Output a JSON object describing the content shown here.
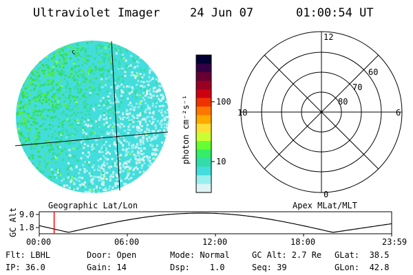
{
  "header": {
    "title": "Ultraviolet Imager",
    "date": "24 Jun 07",
    "time": "01:00:54 UT"
  },
  "colorbar": {
    "label": "photon cm⁻²s⁻¹",
    "ticks": [
      "100",
      "10"
    ],
    "colors": [
      "#000033",
      "#330044",
      "#660033",
      "#990022",
      "#cc0011",
      "#ee3300",
      "#ff7700",
      "#ffaa00",
      "#ffdd33",
      "#ccff33",
      "#66ff33",
      "#33ee66",
      "#33ddaa",
      "#44dddd",
      "#99eeee",
      "#ddf4f4"
    ]
  },
  "polar_plot": {
    "mlt_labels": {
      "top": "12",
      "left": "18",
      "right": "6",
      "bottom": "0"
    },
    "lat_labels": [
      "60",
      "70",
      "80"
    ]
  },
  "captions": {
    "left": "Geographic Lat/Lon",
    "right": "Apex MLat/MLT"
  },
  "altitude_panel": {
    "ylabel": "GC Alt",
    "yticks": [
      "9.0",
      "1.8"
    ],
    "xticks": [
      "00:00",
      "06:00",
      "12:00",
      "18:00",
      "23:59"
    ],
    "marker_time_hours": 1.015
  },
  "info": {
    "flt": "Flt: LBHL",
    "ip": "IP: 36.0",
    "door": "Door: Open",
    "gain": "Gain: 14",
    "mode": "Mode: Normal",
    "dsp": "Dsp:    1.0",
    "gcalt": "GC Alt: 2.7 Re",
    "seq": "Seq: 39",
    "glat": "GLat:  38.5",
    "glon": "GLon:  42.8"
  },
  "colors": {
    "marker": "#ff0000",
    "image_main": "#33dd66",
    "image_secondary": "#44dddd",
    "image_light": "#ddf4f4"
  }
}
